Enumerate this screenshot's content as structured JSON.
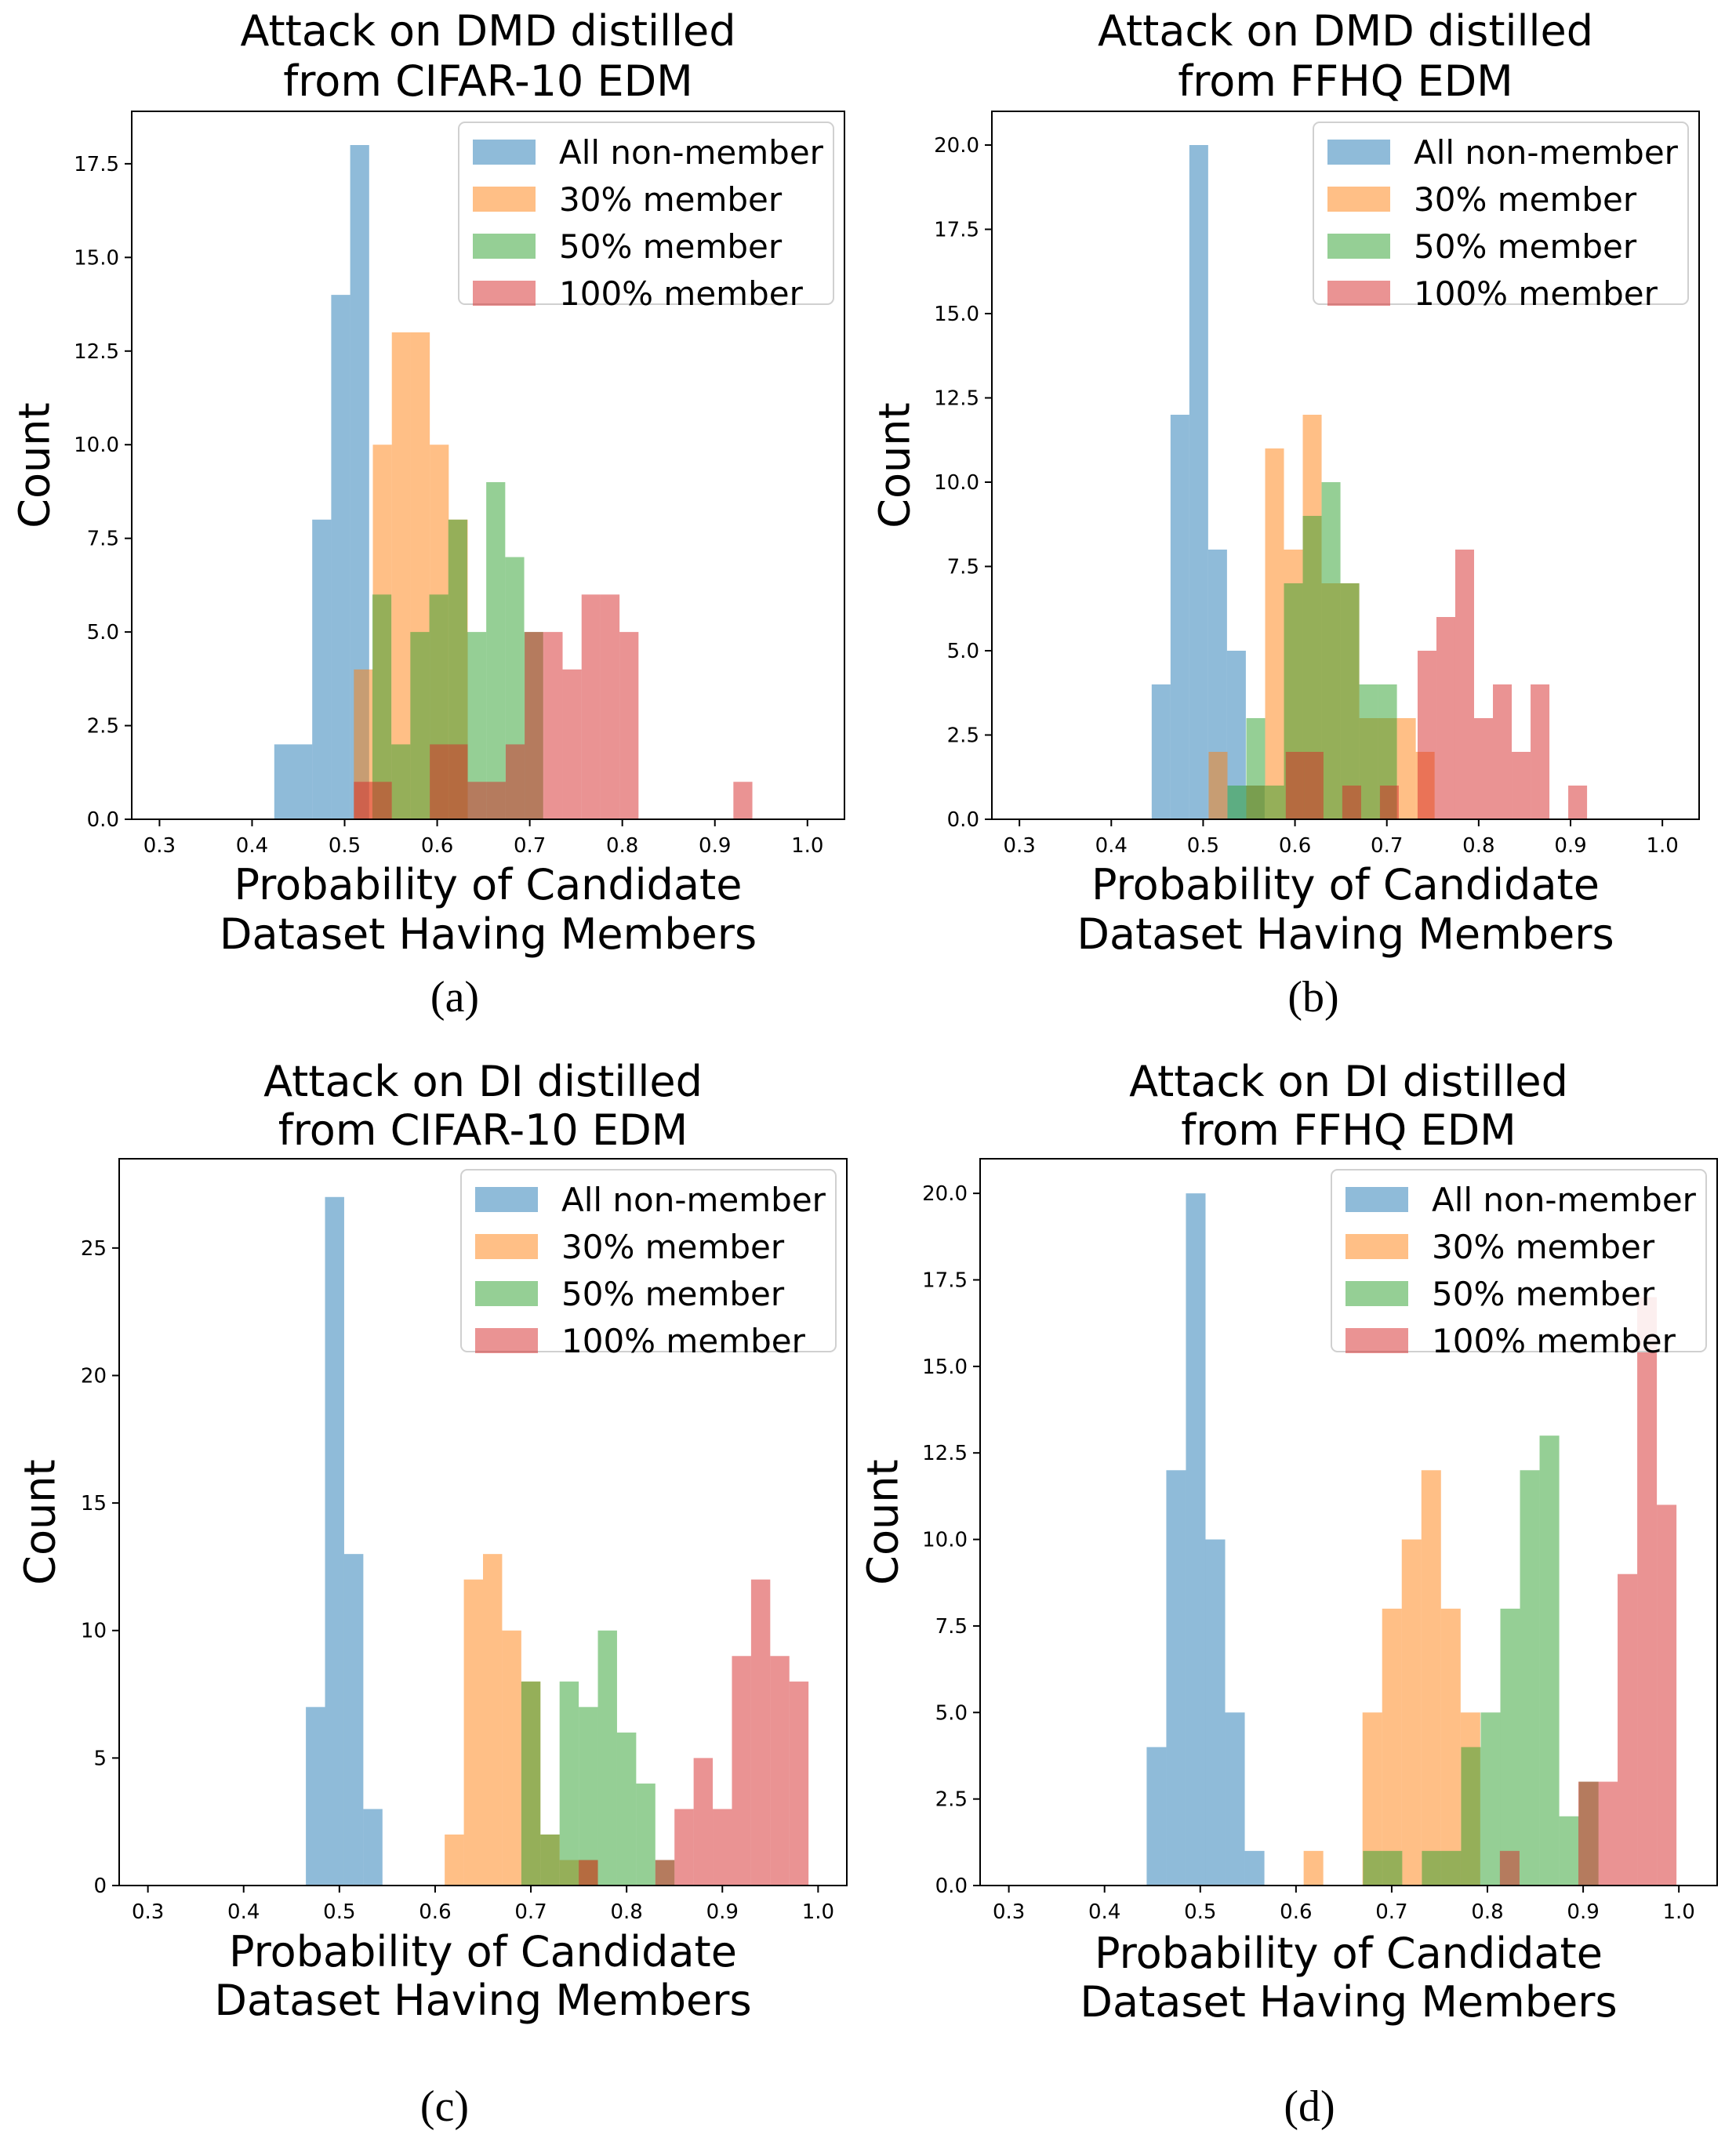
{
  "chart_data": [
    {
      "type": "histogram",
      "id": "a",
      "title_lines": [
        "Attack on DMD distilled",
        "from CIFAR-10 EDM"
      ],
      "xlabel_lines": [
        "Probability of Candidate",
        "Dataset Having Members"
      ],
      "ylabel": "Count",
      "caption": "(a)",
      "xlim": [
        0.27,
        1.04
      ],
      "ylim": [
        0,
        18.9
      ],
      "xticks": [
        0.3,
        0.4,
        0.5,
        0.6,
        0.7,
        0.8,
        0.9,
        1.0
      ],
      "xtick_labels": [
        "0.3",
        "0.4",
        "0.5",
        "0.6",
        "0.7",
        "0.8",
        "0.9",
        "1.0"
      ],
      "yticks": [
        0,
        2.5,
        5,
        7.5,
        10,
        12.5,
        15,
        17.5
      ],
      "ytick_labels": [
        "0.0",
        "2.5",
        "5.0",
        "7.5",
        "10.0",
        "12.5",
        "15.0",
        "17.5"
      ],
      "legend": [
        "All non-member",
        "30% member",
        "50% member",
        "100% member"
      ],
      "series": [
        {
          "name": "All non-member",
          "color": "#1f77b4",
          "bin_start": 0.424,
          "bin_width": 0.0205,
          "counts": [
            2,
            2,
            8,
            14,
            18
          ]
        },
        {
          "name": "30% member",
          "color": "#ff7f0e",
          "bin_start": 0.51,
          "bin_width": 0.0205,
          "counts": [
            4,
            10,
            13,
            13,
            10,
            8
          ]
        },
        {
          "name": "50% member",
          "color": "#2ca02c",
          "bin_start": 0.53,
          "bin_width": 0.0205,
          "counts": [
            6,
            2,
            5,
            6,
            8,
            5,
            9,
            7,
            5
          ]
        },
        {
          "name": "100% member",
          "color": "#d62728",
          "bin_start": 0.51,
          "bin_width": 0.0205,
          "counts": [
            1,
            1,
            0,
            0,
            2,
            2,
            1,
            1,
            2,
            5,
            5,
            4,
            6,
            6,
            5,
            0,
            0,
            0,
            0,
            0,
            1
          ]
        }
      ]
    },
    {
      "type": "histogram",
      "id": "b",
      "title_lines": [
        "Attack on DMD distilled",
        "from FFHQ EDM"
      ],
      "xlabel_lines": [
        "Probability of Candidate",
        "Dataset Having Members"
      ],
      "ylabel": "Count",
      "caption": "(b)",
      "xlim": [
        0.27,
        1.04
      ],
      "ylim": [
        0,
        21
      ],
      "xticks": [
        0.3,
        0.4,
        0.5,
        0.6,
        0.7,
        0.8,
        0.9,
        1.0
      ],
      "xtick_labels": [
        "0.3",
        "0.4",
        "0.5",
        "0.6",
        "0.7",
        "0.8",
        "0.9",
        "1.0"
      ],
      "yticks": [
        0,
        2.5,
        5,
        7.5,
        10,
        12.5,
        15,
        17.5,
        20
      ],
      "ytick_labels": [
        "0.0",
        "2.5",
        "5.0",
        "7.5",
        "10.0",
        "12.5",
        "15.0",
        "17.5",
        "20.0"
      ],
      "legend": [
        "All non-member",
        "30% member",
        "50% member",
        "100% member"
      ],
      "series": [
        {
          "name": "All non-member",
          "color": "#1f77b4",
          "bin_start": 0.444,
          "bin_width": 0.0205,
          "counts": [
            4,
            12,
            20,
            8,
            5,
            1
          ]
        },
        {
          "name": "30% member",
          "color": "#ff7f0e",
          "bin_start": 0.506,
          "bin_width": 0.0205,
          "counts": [
            2,
            0,
            1,
            11,
            8,
            12,
            7,
            7,
            3,
            3,
            3,
            2
          ]
        },
        {
          "name": "50% member",
          "color": "#2ca02c",
          "bin_start": 0.506,
          "bin_width": 0.0205,
          "counts": [
            0,
            1,
            3,
            1,
            7,
            9,
            10,
            7,
            4,
            4
          ]
        },
        {
          "name": "100% member",
          "color": "#d62728",
          "bin_start": 0.59,
          "bin_width": 0.0205,
          "counts": [
            2,
            2,
            0,
            1,
            0,
            1,
            0,
            5,
            6,
            8,
            3,
            4,
            2,
            4,
            0,
            1
          ]
        }
      ]
    },
    {
      "type": "histogram",
      "id": "c",
      "title_lines": [
        "Attack on DI distilled",
        "from CIFAR-10 EDM"
      ],
      "xlabel_lines": [
        "Probability of Candidate",
        "Dataset Having Members"
      ],
      "ylabel": "Count",
      "caption": "(c)",
      "xlim": [
        0.27,
        1.03
      ],
      "ylim": [
        0,
        28.5
      ],
      "xticks": [
        0.3,
        0.4,
        0.5,
        0.6,
        0.7,
        0.8,
        0.9,
        1.0
      ],
      "xtick_labels": [
        "0.3",
        "0.4",
        "0.5",
        "0.6",
        "0.7",
        "0.8",
        "0.9",
        "1.0"
      ],
      "yticks": [
        0,
        5,
        10,
        15,
        20,
        25
      ],
      "ytick_labels": [
        "0",
        "5",
        "10",
        "15",
        "20",
        "25"
      ],
      "legend": [
        "All non-member",
        "30% member",
        "50% member",
        "100% member"
      ],
      "series": [
        {
          "name": "All non-member",
          "color": "#1f77b4",
          "bin_start": 0.465,
          "bin_width": 0.02,
          "counts": [
            7,
            27,
            13,
            3
          ]
        },
        {
          "name": "30% member",
          "color": "#ff7f0e",
          "bin_start": 0.61,
          "bin_width": 0.02,
          "counts": [
            2,
            12,
            13,
            10,
            8,
            2,
            1,
            1
          ]
        },
        {
          "name": "50% member",
          "color": "#2ca02c",
          "bin_start": 0.69,
          "bin_width": 0.02,
          "counts": [
            8,
            2,
            8,
            7,
            10,
            6,
            4,
            1
          ]
        },
        {
          "name": "100% member",
          "color": "#d62728",
          "bin_start": 0.73,
          "bin_width": 0.02,
          "counts": [
            0,
            1,
            0,
            0,
            0,
            1,
            3,
            5,
            3,
            9,
            12,
            9,
            8
          ]
        }
      ]
    },
    {
      "type": "histogram",
      "id": "d",
      "title_lines": [
        "Attack on DI distilled",
        "from FFHQ EDM"
      ],
      "xlabel_lines": [
        "Probability of Candidate",
        "Dataset Having Members"
      ],
      "ylabel": "Count",
      "caption": "(d)",
      "xlim": [
        0.27,
        1.04
      ],
      "ylim": [
        0,
        21
      ],
      "xticks": [
        0.3,
        0.4,
        0.5,
        0.6,
        0.7,
        0.8,
        0.9,
        1.0
      ],
      "xtick_labels": [
        "0.3",
        "0.4",
        "0.5",
        "0.6",
        "0.7",
        "0.8",
        "0.9",
        "1.0"
      ],
      "yticks": [
        0,
        2.5,
        5,
        7.5,
        10,
        12.5,
        15,
        17.5,
        20
      ],
      "ytick_labels": [
        "0.0",
        "2.5",
        "5.0",
        "7.5",
        "10.0",
        "12.5",
        "15.0",
        "17.5",
        "20.0"
      ],
      "legend": [
        "All non-member",
        "30% member",
        "50% member",
        "100% member"
      ],
      "series": [
        {
          "name": "All non-member",
          "color": "#1f77b4",
          "bin_start": 0.444,
          "bin_width": 0.0205,
          "counts": [
            4,
            12,
            20,
            10,
            5,
            1
          ]
        },
        {
          "name": "30% member",
          "color": "#ff7f0e",
          "bin_start": 0.608,
          "bin_width": 0.0205,
          "counts": [
            1,
            0,
            0,
            5,
            8,
            10,
            12,
            8,
            5
          ]
        },
        {
          "name": "50% member",
          "color": "#2ca02c",
          "bin_start": 0.67,
          "bin_width": 0.0205,
          "counts": [
            1,
            1,
            0,
            1,
            1,
            4,
            5,
            8,
            12,
            13,
            2,
            3
          ]
        },
        {
          "name": "100% member",
          "color": "#d62728",
          "bin_start": 0.813,
          "bin_width": 0.0205,
          "counts": [
            1,
            0,
            0,
            0,
            3,
            3,
            9,
            17,
            11
          ]
        }
      ]
    }
  ]
}
